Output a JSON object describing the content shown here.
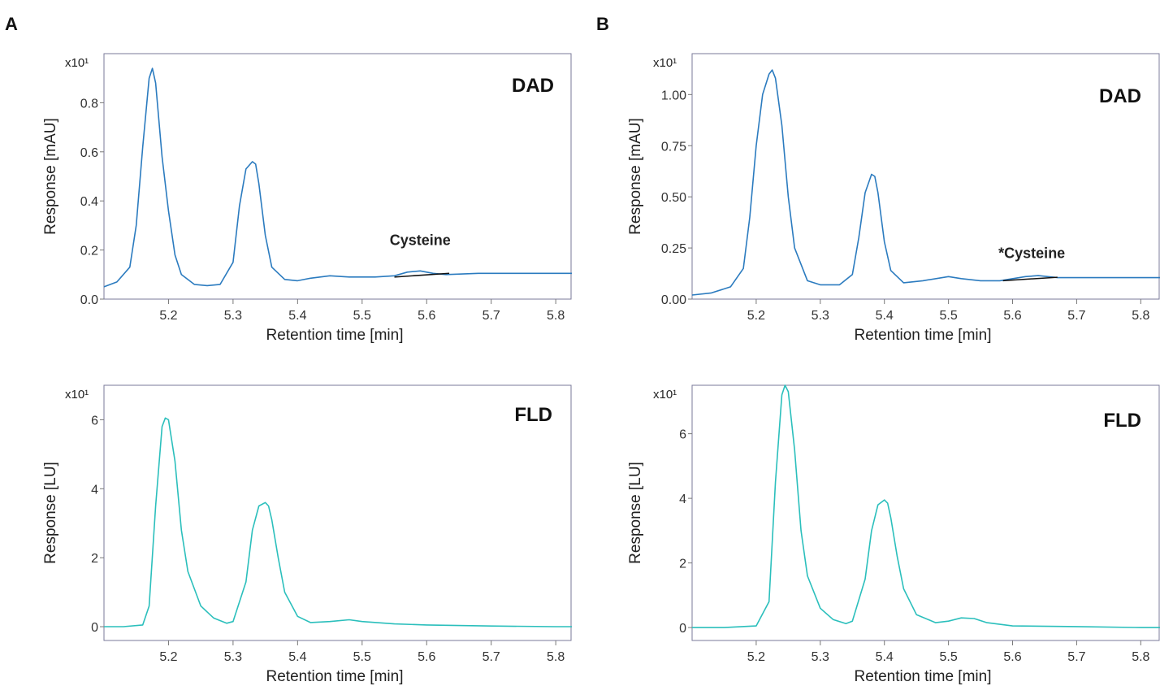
{
  "panels": [
    {
      "letter": "A"
    },
    {
      "letter": "B"
    }
  ],
  "chart_data": [
    {
      "type": "line",
      "panel": "A",
      "title": "DAD",
      "xlabel": "Retention time [min]",
      "ylabel": "Response [mAU]",
      "multiplier": "x10¹",
      "xlim": [
        5.1,
        5.825
      ],
      "ylim": [
        0.0,
        1.0
      ],
      "xticks": [
        5.2,
        5.3,
        5.4,
        5.5,
        5.6,
        5.7,
        5.8
      ],
      "yticks": [
        "0.0",
        "0.2",
        "0.4",
        "0.6",
        "0.8"
      ],
      "ytick_values": [
        0.0,
        0.2,
        0.4,
        0.6,
        0.8
      ],
      "color": "#2b7bbf",
      "annotation": {
        "text": "Cysteine",
        "x": 5.59,
        "y": 0.22
      },
      "baseline": {
        "x": [
          5.55,
          5.635
        ],
        "y": [
          0.09,
          0.105
        ]
      },
      "series": [
        {
          "x": [
            5.1,
            5.12,
            5.14,
            5.15,
            5.16,
            5.17,
            5.175,
            5.18,
            5.19,
            5.2,
            5.21,
            5.22,
            5.24,
            5.26,
            5.28,
            5.3,
            5.31,
            5.32,
            5.33,
            5.335,
            5.34,
            5.35,
            5.36,
            5.38,
            5.4,
            5.42,
            5.45,
            5.48,
            5.52,
            5.55,
            5.57,
            5.59,
            5.61,
            5.63,
            5.68,
            5.75,
            5.8,
            5.825
          ],
          "y": [
            0.05,
            0.07,
            0.13,
            0.3,
            0.62,
            0.9,
            0.94,
            0.88,
            0.58,
            0.36,
            0.18,
            0.1,
            0.06,
            0.055,
            0.06,
            0.15,
            0.38,
            0.53,
            0.56,
            0.55,
            0.47,
            0.26,
            0.13,
            0.08,
            0.075,
            0.085,
            0.095,
            0.09,
            0.09,
            0.095,
            0.11,
            0.115,
            0.105,
            0.1,
            0.105,
            0.105,
            0.105,
            0.105
          ]
        }
      ]
    },
    {
      "type": "line",
      "panel": "B",
      "title": "DAD",
      "xlabel": "Retention time [min]",
      "ylabel": "Response [mAU]",
      "multiplier": "x10¹",
      "xlim": [
        5.1,
        5.83
      ],
      "ylim": [
        0.0,
        1.2
      ],
      "xticks": [
        5.2,
        5.3,
        5.4,
        5.5,
        5.6,
        5.7,
        5.8
      ],
      "yticks": [
        "0.00",
        "0.25",
        "0.50",
        "0.75",
        "1.00"
      ],
      "ytick_values": [
        0.0,
        0.25,
        0.5,
        0.75,
        1.0
      ],
      "color": "#2b7bbf",
      "annotation": {
        "text": "*Cysteine",
        "x": 5.63,
        "y": 0.2
      },
      "baseline": {
        "x": [
          5.585,
          5.67
        ],
        "y": [
          0.09,
          0.107
        ]
      },
      "series": [
        {
          "x": [
            5.1,
            5.13,
            5.16,
            5.18,
            5.19,
            5.2,
            5.21,
            5.22,
            5.225,
            5.23,
            5.24,
            5.25,
            5.26,
            5.28,
            5.3,
            5.33,
            5.35,
            5.36,
            5.37,
            5.38,
            5.385,
            5.39,
            5.4,
            5.41,
            5.43,
            5.46,
            5.5,
            5.52,
            5.55,
            5.58,
            5.62,
            5.64,
            5.67,
            5.72,
            5.8,
            5.83
          ],
          "y": [
            0.02,
            0.03,
            0.06,
            0.15,
            0.4,
            0.75,
            1.0,
            1.1,
            1.12,
            1.08,
            0.85,
            0.5,
            0.25,
            0.09,
            0.07,
            0.07,
            0.12,
            0.3,
            0.52,
            0.61,
            0.6,
            0.52,
            0.28,
            0.14,
            0.08,
            0.09,
            0.11,
            0.1,
            0.09,
            0.09,
            0.11,
            0.115,
            0.105,
            0.105,
            0.105,
            0.105
          ]
        }
      ]
    },
    {
      "type": "line",
      "panel": "A",
      "title": "FLD",
      "xlabel": "Retention time [min]",
      "ylabel": "Response [LU]",
      "multiplier": "x10¹",
      "xlim": [
        5.1,
        5.825
      ],
      "ylim": [
        -0.4,
        7.0
      ],
      "xticks": [
        5.2,
        5.3,
        5.4,
        5.5,
        5.6,
        5.7,
        5.8
      ],
      "yticks": [
        "0",
        "2",
        "4",
        "6"
      ],
      "ytick_values": [
        0,
        2,
        4,
        6
      ],
      "color": "#2bbfbc",
      "series": [
        {
          "x": [
            5.1,
            5.13,
            5.16,
            5.17,
            5.18,
            5.19,
            5.195,
            5.2,
            5.21,
            5.22,
            5.23,
            5.25,
            5.27,
            5.29,
            5.3,
            5.32,
            5.33,
            5.34,
            5.35,
            5.355,
            5.36,
            5.37,
            5.38,
            5.4,
            5.42,
            5.45,
            5.48,
            5.5,
            5.55,
            5.6,
            5.7,
            5.8,
            5.825
          ],
          "y": [
            0.0,
            0.0,
            0.05,
            0.6,
            3.5,
            5.8,
            6.05,
            6.0,
            4.8,
            2.8,
            1.6,
            0.6,
            0.25,
            0.1,
            0.15,
            1.3,
            2.8,
            3.5,
            3.6,
            3.5,
            3.1,
            2.0,
            1.0,
            0.3,
            0.12,
            0.15,
            0.2,
            0.15,
            0.08,
            0.05,
            0.02,
            0.0,
            0.0
          ]
        }
      ]
    },
    {
      "type": "line",
      "panel": "B",
      "title": "FLD",
      "xlabel": "Retention time [min]",
      "ylabel": "Response [LU]",
      "multiplier": "x10¹",
      "xlim": [
        5.1,
        5.83
      ],
      "ylim": [
        -0.4,
        7.5
      ],
      "xticks": [
        5.2,
        5.3,
        5.4,
        5.5,
        5.6,
        5.7,
        5.8
      ],
      "yticks": [
        "0",
        "2",
        "4",
        "6"
      ],
      "ytick_values": [
        0,
        2,
        4,
        6
      ],
      "color": "#2bbfbc",
      "series": [
        {
          "x": [
            5.1,
            5.15,
            5.2,
            5.22,
            5.23,
            5.24,
            5.245,
            5.25,
            5.26,
            5.27,
            5.28,
            5.3,
            5.32,
            5.34,
            5.35,
            5.37,
            5.38,
            5.39,
            5.4,
            5.405,
            5.41,
            5.42,
            5.43,
            5.45,
            5.48,
            5.5,
            5.52,
            5.54,
            5.56,
            5.6,
            5.7,
            5.8,
            5.83
          ],
          "y": [
            0.0,
            0.0,
            0.05,
            0.8,
            4.5,
            7.2,
            7.5,
            7.3,
            5.5,
            3.0,
            1.6,
            0.6,
            0.25,
            0.12,
            0.2,
            1.5,
            3.0,
            3.8,
            3.95,
            3.85,
            3.4,
            2.2,
            1.2,
            0.4,
            0.15,
            0.2,
            0.3,
            0.28,
            0.15,
            0.05,
            0.03,
            0.0,
            0.0
          ]
        }
      ]
    }
  ]
}
